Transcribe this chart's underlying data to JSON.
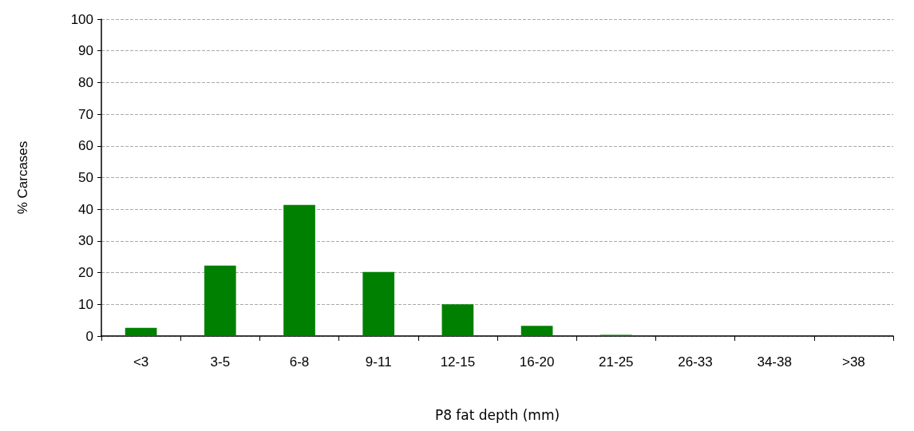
{
  "chart_data": {
    "type": "bar",
    "xlabel": "P8 fat depth (mm)",
    "ylabel": "% Carcases",
    "categories": [
      "<3",
      "3-5",
      "6-8",
      "9-11",
      "12-15",
      "16-20",
      "21-25",
      "26-33",
      "34-38",
      ">38"
    ],
    "values": [
      2.6,
      22.2,
      41.4,
      20.2,
      10.0,
      3.2,
      0.4,
      0,
      0,
      0
    ],
    "color": "#008000",
    "ylim": [
      0,
      100
    ],
    "yticks": [
      0,
      10,
      20,
      30,
      40,
      50,
      60,
      70,
      80,
      90,
      100
    ],
    "grid": "y"
  }
}
